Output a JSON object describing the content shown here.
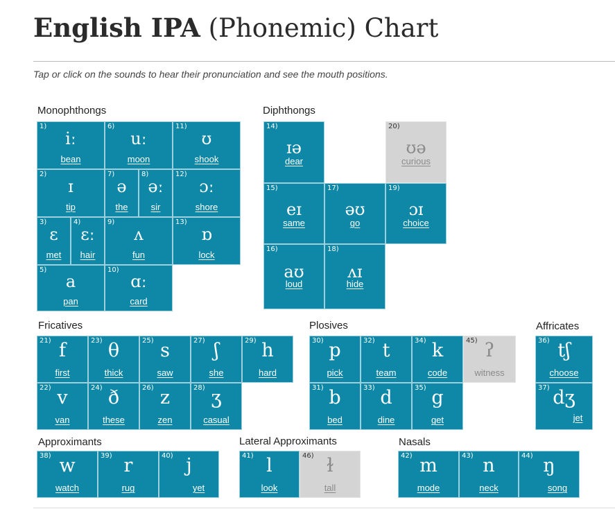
{
  "title_bold": "English IPA",
  "title_rest": " (Phonemic) Chart",
  "subtitle": "Tap or click on the sounds to hear their pronunciation and see the mouth positions.",
  "groups": {
    "monophthongs": "Monophthongs",
    "diphthongs": "Diphthongs",
    "fricatives": "Fricatives",
    "plosives": "Plosives",
    "affricates": "Affricates",
    "approximants": "Approximants",
    "lateral": "Lateral Approximants",
    "nasals": "Nasals"
  },
  "sounds": {
    "s1": {
      "num": "1)",
      "ipa": "iː",
      "example": "bean"
    },
    "s2": {
      "num": "2)",
      "ipa": "ɪ",
      "example": "tip"
    },
    "s3": {
      "num": "3)",
      "ipa": "ɛ",
      "example": "met"
    },
    "s4": {
      "num": "4)",
      "ipa": "ɛː",
      "example": "hair"
    },
    "s5": {
      "num": "5)",
      "ipa": "a",
      "example": "pan"
    },
    "s6": {
      "num": "6)",
      "ipa": "uː",
      "example": "moon"
    },
    "s7": {
      "num": "7)",
      "ipa": "ə",
      "example": "the"
    },
    "s8": {
      "num": "8)",
      "ipa": "əː",
      "example": "sir"
    },
    "s9": {
      "num": "9)",
      "ipa": "ʌ",
      "example": "fun"
    },
    "s10": {
      "num": "10)",
      "ipa": "ɑː",
      "example": "card"
    },
    "s11": {
      "num": "11)",
      "ipa": "ʊ",
      "example": "shook"
    },
    "s12": {
      "num": "12)",
      "ipa": "ɔː",
      "example": "shore"
    },
    "s13": {
      "num": "13)",
      "ipa": "ɒ",
      "example": "lock"
    },
    "s14": {
      "num": "14)",
      "ipa": "ɪə",
      "example": "dear"
    },
    "s15": {
      "num": "15)",
      "ipa": "eɪ",
      "example": "same"
    },
    "s16": {
      "num": "16)",
      "ipa": "aʊ",
      "example": "loud"
    },
    "s17": {
      "num": "17)",
      "ipa": "əʊ",
      "example": "go"
    },
    "s18": {
      "num": "18)",
      "ipa": "ʌɪ",
      "example": "hide"
    },
    "s19": {
      "num": "19)",
      "ipa": "ɔɪ",
      "example": "choice"
    },
    "s20": {
      "num": "20)",
      "ipa": "ʊə",
      "example": "curious"
    },
    "s21": {
      "num": "21)",
      "ipa": "f",
      "example": "first"
    },
    "s22": {
      "num": "22)",
      "ipa": "v",
      "example": "van"
    },
    "s23": {
      "num": "23)",
      "ipa": "θ",
      "example": "thick"
    },
    "s24": {
      "num": "24)",
      "ipa": "ð",
      "example": "these"
    },
    "s25": {
      "num": "25)",
      "ipa": "s",
      "example": "saw"
    },
    "s26": {
      "num": "26)",
      "ipa": "z",
      "example": "zen"
    },
    "s27": {
      "num": "27)",
      "ipa": "ʃ",
      "example": "she"
    },
    "s28": {
      "num": "28)",
      "ipa": "ʒ",
      "example": "casual"
    },
    "s29": {
      "num": "29)",
      "ipa": "h",
      "example": "hard"
    },
    "s30": {
      "num": "30)",
      "ipa": "p",
      "example": "pick"
    },
    "s31": {
      "num": "31)",
      "ipa": "b",
      "example": "bed"
    },
    "s32": {
      "num": "32)",
      "ipa": "t",
      "example": "team"
    },
    "s33": {
      "num": "33)",
      "ipa": "d",
      "example": "dine"
    },
    "s34": {
      "num": "34)",
      "ipa": "k",
      "example": "code"
    },
    "s35": {
      "num": "35)",
      "ipa": "g",
      "example": "get"
    },
    "s45": {
      "num": "45)",
      "ipa": "ʔ",
      "example": "witness"
    },
    "s36": {
      "num": "36)",
      "ipa": "tʃ",
      "example": "choose"
    },
    "s37": {
      "num": "37)",
      "ipa": "dʒ",
      "example": "jet"
    },
    "s38": {
      "num": "38)",
      "ipa": "w",
      "example": "watch"
    },
    "s39": {
      "num": "39)",
      "ipa": "r",
      "example": "rug"
    },
    "s40": {
      "num": "40)",
      "ipa": "j",
      "example": "yet"
    },
    "s41": {
      "num": "41)",
      "ipa": "l",
      "example": "look"
    },
    "s46": {
      "num": "46)",
      "ipa": "ɫ",
      "example": "tall"
    },
    "s42": {
      "num": "42)",
      "ipa": "m",
      "example": "mode"
    },
    "s43": {
      "num": "43)",
      "ipa": "n",
      "example": "neck"
    },
    "s44": {
      "num": "44)",
      "ipa": "ŋ",
      "example": "song"
    }
  }
}
